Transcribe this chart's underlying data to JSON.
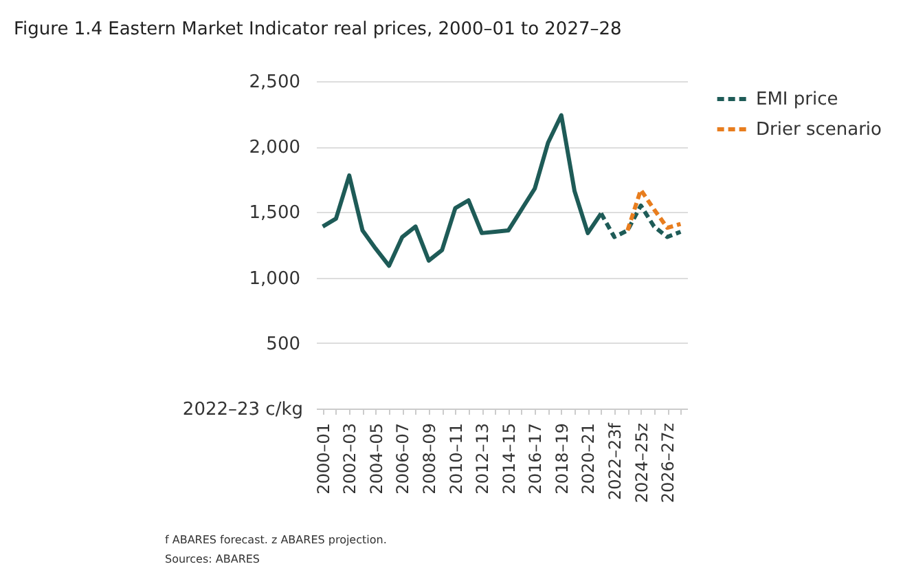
{
  "chart_data": {
    "type": "line",
    "title": "Figure 1.4 Eastern Market Indicator real prices, 2000–01 to 2027–28",
    "ylabel": "2022–23 c/kg",
    "categories": [
      "2000–01",
      null,
      "2002–03",
      null,
      "2004–05",
      null,
      "2006–07",
      null,
      "2008–09",
      null,
      "2010–11",
      null,
      "2012–13",
      null,
      "2014–15",
      null,
      "2016–17",
      null,
      "2018–19",
      null,
      "2020–21",
      null,
      "2022–23f",
      null,
      "2024–25z",
      null,
      "2026–27z",
      null
    ],
    "series": [
      {
        "color": "#1e5b57",
        "line_style": "solid",
        "values": [
          1390,
          1450,
          1780,
          1360,
          1220,
          1090,
          1310,
          1390,
          1130,
          1210,
          1530,
          1590,
          1340,
          1350,
          1360,
          1520,
          1680,
          2030,
          2240,
          1660,
          1340,
          1490,
          null,
          null,
          null,
          null,
          null,
          null
        ]
      },
      {
        "name": "EMI price",
        "color": "#1e5b57",
        "line_style": "dashed",
        "values": [
          null,
          null,
          null,
          null,
          null,
          null,
          null,
          null,
          null,
          null,
          null,
          null,
          null,
          null,
          null,
          null,
          null,
          null,
          null,
          null,
          null,
          1490,
          1310,
          1360,
          1550,
          1390,
          1310,
          1350
        ]
      },
      {
        "name": "Drier scenario",
        "color": "#e87d1e",
        "line_style": "dashed",
        "values": [
          null,
          null,
          null,
          null,
          null,
          null,
          null,
          null,
          null,
          null,
          null,
          null,
          null,
          null,
          null,
          null,
          null,
          null,
          null,
          null,
          null,
          null,
          null,
          1360,
          1670,
          1520,
          1380,
          1410
        ]
      }
    ],
    "ylim": [
      0,
      2500
    ],
    "yticks": [
      {
        "value": 500,
        "label": "500"
      },
      {
        "value": 1000,
        "label": "1,000"
      },
      {
        "value": 1500,
        "label": "1,500"
      },
      {
        "value": 2000,
        "label": "2,000"
      },
      {
        "value": 2500,
        "label": "2,500"
      }
    ],
    "grid": "y",
    "legend": "top right",
    "annotations": [
      "f ABARES forecast. z ABARES projection.",
      "Sources: ABARES"
    ]
  }
}
